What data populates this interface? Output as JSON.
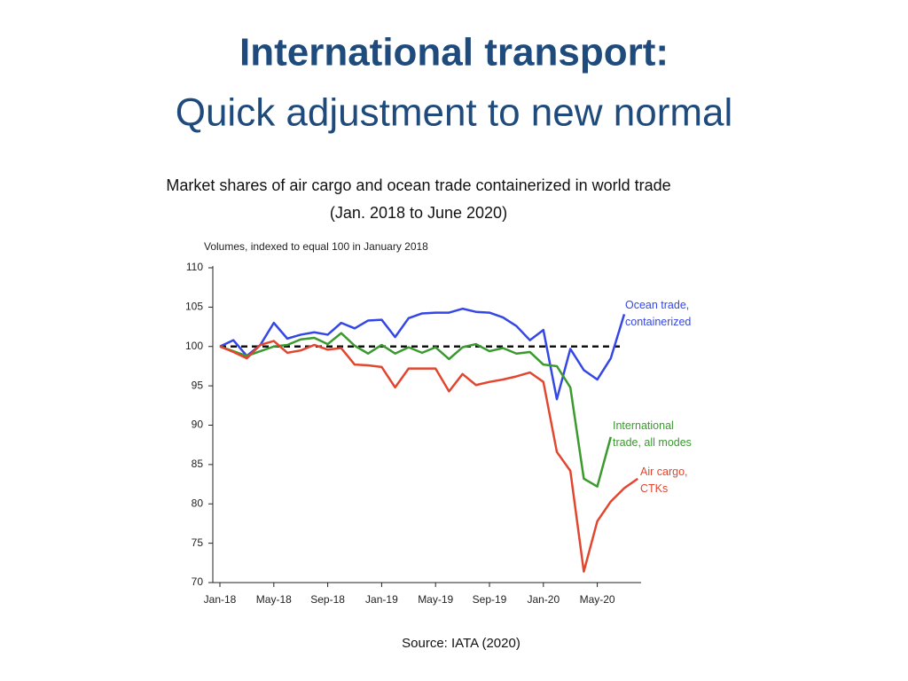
{
  "slide": {
    "title_line1": "International transport:",
    "title_line2": "Quick adjustment to new normal"
  },
  "chart_data": {
    "type": "line",
    "title": "Market shares of air cargo and ocean trade containerized in world trade",
    "subtitle": "(Jan. 2018 to June 2020)",
    "y_axis_label": "Volumes, indexed to equal 100 in January 2018",
    "source": "Source: IATA (2020)",
    "categories": [
      "Jan-18",
      null,
      null,
      null,
      "May-18",
      null,
      null,
      null,
      "Sep-18",
      null,
      null,
      null,
      "Jan-19",
      null,
      null,
      null,
      "May-19",
      null,
      null,
      null,
      "Sep-19",
      null,
      null,
      null,
      "Jan-20",
      null,
      null,
      null,
      "May-20",
      null,
      null,
      null
    ],
    "ylim": [
      70,
      110
    ],
    "yticks": [
      70,
      75,
      80,
      85,
      90,
      95,
      100,
      105,
      110
    ],
    "reference_line": 100,
    "series": [
      {
        "name": "Ocean trade, containerized",
        "color": "#3447e6",
        "values": [
          100,
          100.8,
          98.8,
          100.2,
          103,
          101,
          101.5,
          101.8,
          101.5,
          103,
          102.3,
          103.3,
          103.4,
          101.2,
          103.6,
          104.2,
          104.3,
          104.3,
          104.8,
          104.4,
          104.3,
          103.7,
          102.6,
          100.8,
          102.1,
          93.3,
          99.7,
          97,
          95.8,
          98.5,
          104.1,
          null
        ]
      },
      {
        "name": "International trade, all modes",
        "color": "#3a9a2e",
        "values": [
          100,
          99.4,
          98.8,
          99.4,
          100,
          100.2,
          100.9,
          101.1,
          100.3,
          101.7,
          100.1,
          99.1,
          100.2,
          99.1,
          99.9,
          99.2,
          99.9,
          98.4,
          99.9,
          100.3,
          99.4,
          99.8,
          99.1,
          99.3,
          97.7,
          97.5,
          94.8,
          83.2,
          82.2,
          88.5,
          null,
          null
        ]
      },
      {
        "name": "Air cargo, CTKs",
        "color": "#e2462f",
        "values": [
          100,
          99.3,
          98.5,
          100.2,
          100.7,
          99.2,
          99.5,
          100.2,
          99.6,
          99.8,
          97.7,
          97.6,
          97.4,
          94.8,
          97.2,
          97.2,
          97.2,
          94.3,
          96.5,
          95.1,
          95.5,
          95.8,
          96.2,
          96.7,
          95.5,
          86.6,
          84.2,
          71.4,
          77.8,
          80.3,
          82,
          83.2
        ]
      }
    ]
  }
}
